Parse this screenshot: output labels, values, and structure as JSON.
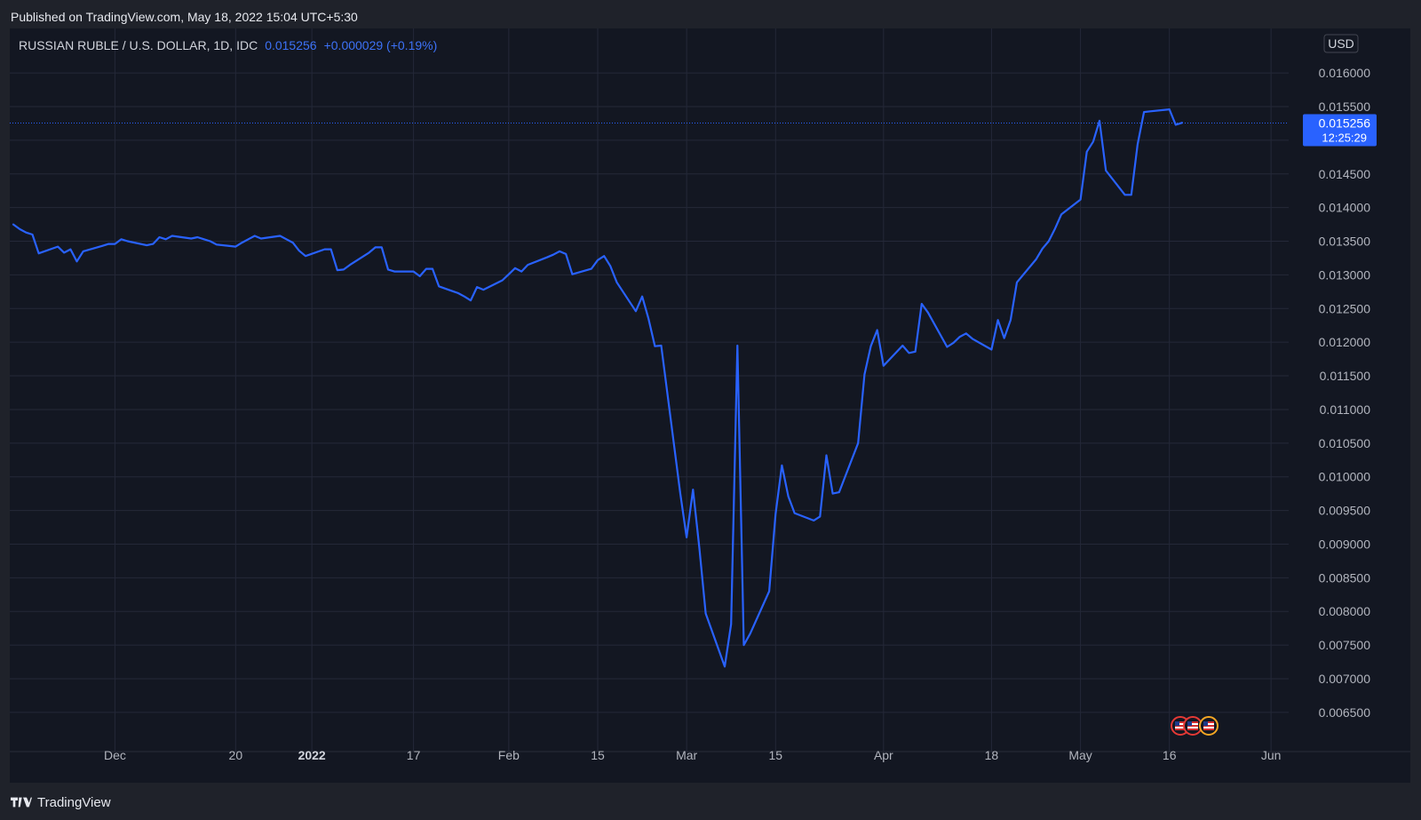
{
  "header": {
    "published": "Published on TradingView.com, May 18, 2022 15:04 UTC+5:30"
  },
  "legend": {
    "symbol": "RUSSIAN RUBLE / U.S. DOLLAR, 1D, IDC",
    "last": "0.015256",
    "change": "+0.000029 (+0.19%)"
  },
  "price_axis": {
    "currency": "USD",
    "last_label": "0.015256",
    "countdown": "12:25:29"
  },
  "footer": {
    "brand": "TradingView"
  },
  "colors": {
    "background": "#131722",
    "line": "#2962ff",
    "grid": "#242838",
    "badge": "#2962ff"
  },
  "chart_data": {
    "type": "line",
    "title": "RUSSIAN RUBLE / U.S. DOLLAR, 1D, IDC",
    "xlabel": "",
    "ylabel": "",
    "ylim": [
      0.0063,
      0.0162
    ],
    "grid": true,
    "x_ticks": [
      {
        "label": "Dec",
        "date": "2021-12-01",
        "bold": false
      },
      {
        "label": "20",
        "date": "2021-12-20",
        "bold": false
      },
      {
        "label": "2022",
        "date": "2022-01-01",
        "bold": true
      },
      {
        "label": "17",
        "date": "2022-01-17",
        "bold": false
      },
      {
        "label": "Feb",
        "date": "2022-02-01",
        "bold": false
      },
      {
        "label": "15",
        "date": "2022-02-15",
        "bold": false
      },
      {
        "label": "Mar",
        "date": "2022-03-01",
        "bold": false
      },
      {
        "label": "15",
        "date": "2022-03-15",
        "bold": false
      },
      {
        "label": "Apr",
        "date": "2022-04-01",
        "bold": false
      },
      {
        "label": "18",
        "date": "2022-04-18",
        "bold": false
      },
      {
        "label": "May",
        "date": "2022-05-02",
        "bold": false
      },
      {
        "label": "16",
        "date": "2022-05-16",
        "bold": false
      },
      {
        "label": "Jun",
        "date": "2022-06-01",
        "bold": false
      }
    ],
    "y_ticks": [
      "0.016000",
      "0.015500",
      "0.015000",
      "0.014500",
      "0.014000",
      "0.013500",
      "0.013000",
      "0.012500",
      "0.012000",
      "0.011500",
      "0.011000",
      "0.010500",
      "0.010000",
      "0.009500",
      "0.009000",
      "0.008500",
      "0.008000",
      "0.007500",
      "0.007000",
      "0.006500"
    ],
    "series": [
      {
        "x": [
          "2021-11-15",
          "2021-11-16",
          "2021-11-17",
          "2021-11-18",
          "2021-11-19",
          "2021-11-22",
          "2021-11-23",
          "2021-11-24",
          "2021-11-25",
          "2021-11-26",
          "2021-11-29",
          "2021-11-30",
          "2021-12-01",
          "2021-12-02",
          "2021-12-03",
          "2021-12-06",
          "2021-12-07",
          "2021-12-08",
          "2021-12-09",
          "2021-12-10",
          "2021-12-13",
          "2021-12-14",
          "2021-12-15",
          "2021-12-16",
          "2021-12-17",
          "2021-12-20",
          "2021-12-21",
          "2021-12-22",
          "2021-12-23",
          "2021-12-24",
          "2021-12-27",
          "2021-12-28",
          "2021-12-29",
          "2021-12-30",
          "2021-12-31",
          "2022-01-03",
          "2022-01-04",
          "2022-01-05",
          "2022-01-06",
          "2022-01-07",
          "2022-01-10",
          "2022-01-11",
          "2022-01-12",
          "2022-01-13",
          "2022-01-14",
          "2022-01-17",
          "2022-01-18",
          "2022-01-19",
          "2022-01-20",
          "2022-01-21",
          "2022-01-24",
          "2022-01-25",
          "2022-01-26",
          "2022-01-27",
          "2022-01-28",
          "2022-01-31",
          "2022-02-01",
          "2022-02-02",
          "2022-02-03",
          "2022-02-04",
          "2022-02-07",
          "2022-02-08",
          "2022-02-09",
          "2022-02-10",
          "2022-02-11",
          "2022-02-14",
          "2022-02-15",
          "2022-02-16",
          "2022-02-17",
          "2022-02-18",
          "2022-02-21",
          "2022-02-22",
          "2022-02-23",
          "2022-02-24",
          "2022-02-25",
          "2022-02-28",
          "2022-03-01",
          "2022-03-02",
          "2022-03-03",
          "2022-03-04",
          "2022-03-07",
          "2022-03-08",
          "2022-03-09",
          "2022-03-10",
          "2022-03-11",
          "2022-03-14",
          "2022-03-15",
          "2022-03-16",
          "2022-03-17",
          "2022-03-18",
          "2022-03-21",
          "2022-03-22",
          "2022-03-23",
          "2022-03-24",
          "2022-03-25",
          "2022-03-28",
          "2022-03-29",
          "2022-03-30",
          "2022-03-31",
          "2022-04-01",
          "2022-04-04",
          "2022-04-05",
          "2022-04-06",
          "2022-04-07",
          "2022-04-08",
          "2022-04-11",
          "2022-04-12",
          "2022-04-13",
          "2022-04-14",
          "2022-04-15",
          "2022-04-18",
          "2022-04-19",
          "2022-04-20",
          "2022-04-21",
          "2022-04-22",
          "2022-04-25",
          "2022-04-26",
          "2022-04-27",
          "2022-04-28",
          "2022-04-29",
          "2022-05-02",
          "2022-05-03",
          "2022-05-04",
          "2022-05-05",
          "2022-05-06",
          "2022-05-09",
          "2022-05-10",
          "2022-05-11",
          "2022-05-12",
          "2022-05-13",
          "2022-05-16",
          "2022-05-17",
          "2022-05-18"
        ],
        "values": [
          0.01375,
          0.01368,
          0.01363,
          0.0136,
          0.01332,
          0.01342,
          0.01333,
          0.01338,
          0.0132,
          0.01335,
          0.01343,
          0.01346,
          0.01346,
          0.01353,
          0.0135,
          0.01344,
          0.01346,
          0.01356,
          0.01353,
          0.01358,
          0.01354,
          0.01356,
          0.01353,
          0.0135,
          0.01345,
          0.01342,
          0.01348,
          0.01353,
          0.01358,
          0.01354,
          0.01358,
          0.01353,
          0.01348,
          0.01336,
          0.01328,
          0.01338,
          0.01338,
          0.01307,
          0.01308,
          0.01315,
          0.01333,
          0.01341,
          0.01341,
          0.01308,
          0.01305,
          0.01305,
          0.01298,
          0.01309,
          0.01309,
          0.01283,
          0.01273,
          0.01268,
          0.01262,
          0.01282,
          0.01278,
          0.01292,
          0.01301,
          0.0131,
          0.01305,
          0.01315,
          0.01326,
          0.0133,
          0.01335,
          0.01331,
          0.01301,
          0.01309,
          0.01322,
          0.01328,
          0.01313,
          0.01289,
          0.01246,
          0.01268,
          0.01235,
          0.01194,
          0.01195,
          0.00975,
          0.0091,
          0.00981,
          0.00895,
          0.00797,
          0.00718,
          0.00781,
          0.01195,
          0.0075,
          0.00767,
          0.0083,
          0.00945,
          0.01017,
          0.00971,
          0.00946,
          0.00935,
          0.00941,
          0.01032,
          0.00975,
          0.00977,
          0.0105,
          0.01152,
          0.01194,
          0.01218,
          0.01165,
          0.01195,
          0.01184,
          0.01186,
          0.01257,
          0.01244,
          0.01193,
          0.01199,
          0.01208,
          0.01213,
          0.01205,
          0.01189,
          0.01233,
          0.01206,
          0.01233,
          0.01289,
          0.01323,
          0.01339,
          0.0135,
          0.01369,
          0.0139,
          0.01412,
          0.01483,
          0.01498,
          0.01529,
          0.01455,
          0.01419,
          0.01419,
          0.01494,
          0.01542,
          0.01543,
          0.01546,
          0.01523,
          0.01526
        ]
      }
    ]
  }
}
